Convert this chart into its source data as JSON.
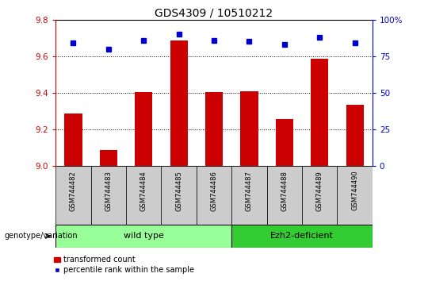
{
  "title": "GDS4309 / 10510212",
  "samples": [
    "GSM744482",
    "GSM744483",
    "GSM744484",
    "GSM744485",
    "GSM744486",
    "GSM744487",
    "GSM744488",
    "GSM744489",
    "GSM744490"
  ],
  "red_values": [
    9.285,
    9.085,
    9.405,
    9.685,
    9.405,
    9.41,
    9.255,
    9.585,
    9.335
  ],
  "blue_percentile": [
    84,
    80,
    86,
    90,
    86,
    85,
    83,
    88,
    84
  ],
  "ylim_left": [
    9.0,
    9.8
  ],
  "ylim_right": [
    0,
    100
  ],
  "yticks_left": [
    9.0,
    9.2,
    9.4,
    9.6,
    9.8
  ],
  "yticks_right": [
    0,
    25,
    50,
    75,
    100
  ],
  "bar_bottom": 9.0,
  "bar_color": "#cc0000",
  "dot_color": "#0000cc",
  "grid_color": "#000000",
  "axis_left_color": "#cc0000",
  "axis_right_color": "#0000cc",
  "bg_color": "#ffffff",
  "plot_bg_color": "#ffffff",
  "group1_label": "wild type",
  "group2_label": "Ezh2-deficient",
  "group1_color": "#99ff99",
  "group2_color": "#33cc33",
  "group1_indices": [
    0,
    1,
    2,
    3,
    4
  ],
  "group2_indices": [
    5,
    6,
    7,
    8
  ],
  "genotype_label": "genotype/variation",
  "legend_red_label": "transformed count",
  "legend_blue_label": "percentile rank within the sample",
  "tick_bg_color": "#cccccc",
  "title_fontsize": 10,
  "bar_width": 0.5
}
